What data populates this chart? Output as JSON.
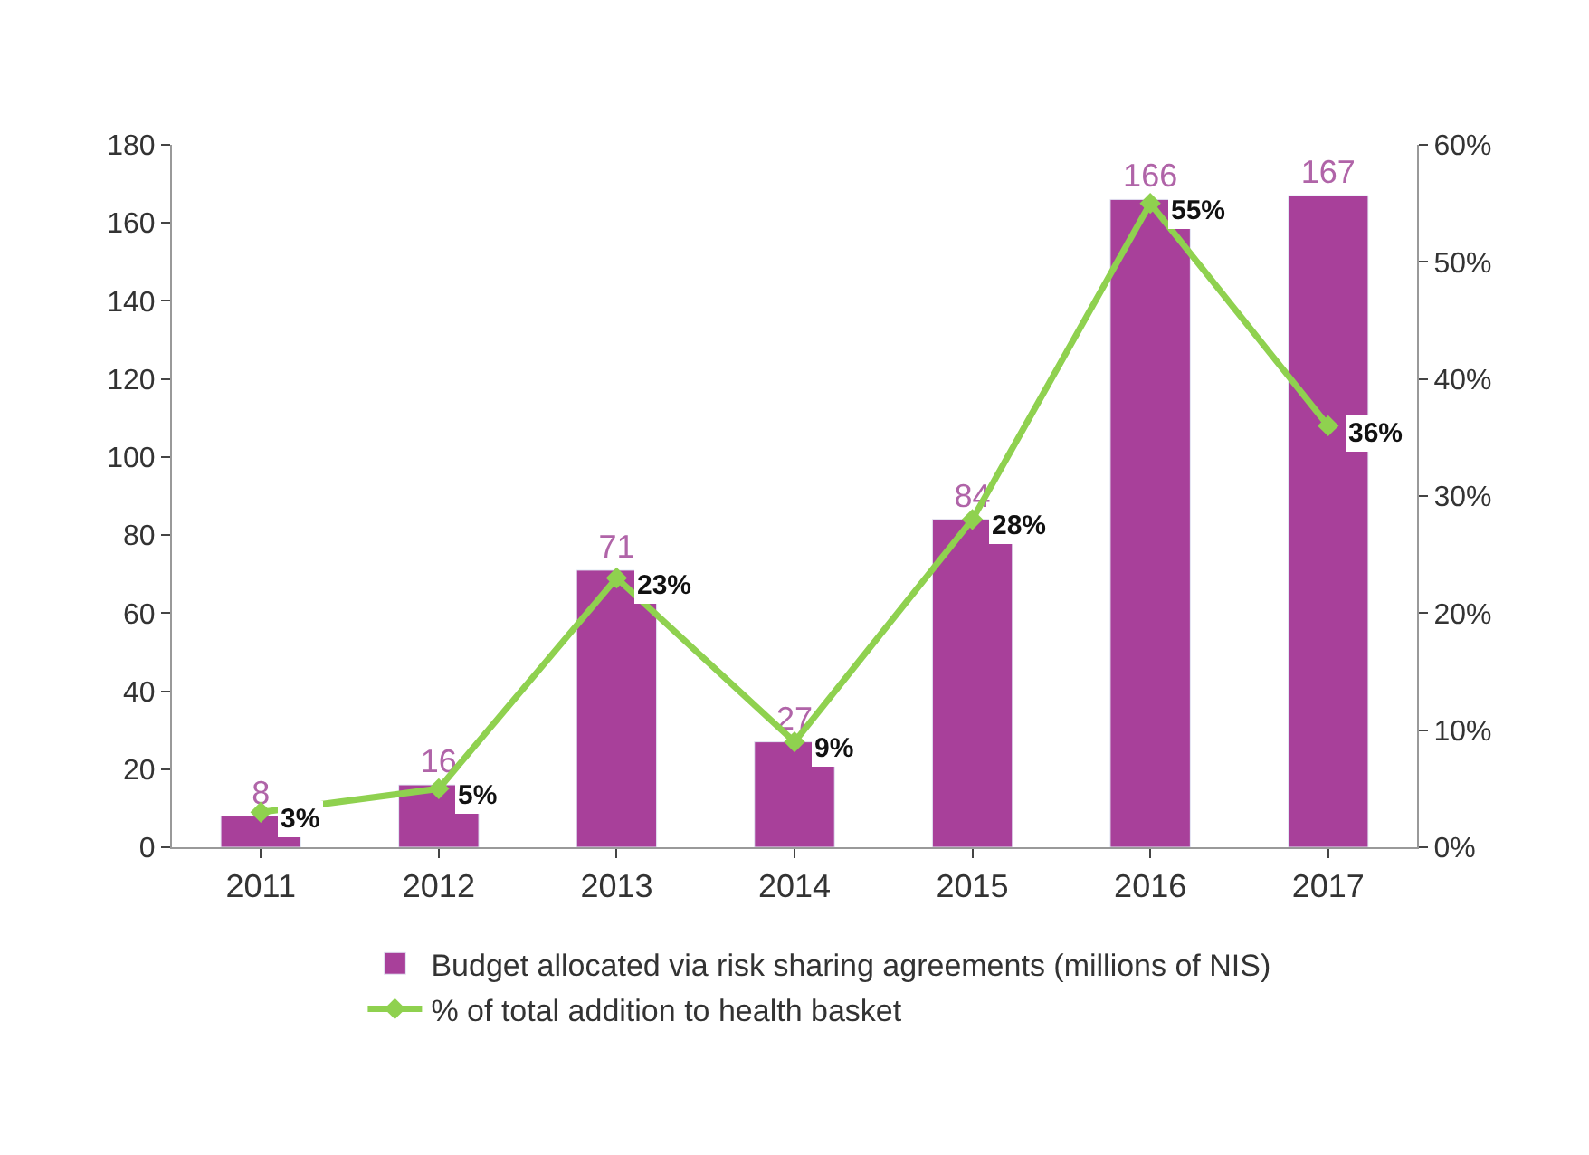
{
  "chart_data": {
    "type": "bar",
    "categories": [
      "2011",
      "2012",
      "2013",
      "2014",
      "2015",
      "2016",
      "2017"
    ],
    "series": [
      {
        "name": "Budget allocated via risk sharing agreements (millions of NIS)",
        "color": "#a8409a",
        "values": [
          8,
          16,
          71,
          27,
          84,
          166,
          167
        ],
        "value_labels": [
          "8",
          "16",
          "71",
          "27",
          "84",
          "166",
          "167"
        ]
      },
      {
        "name": "% of total addition to health basket",
        "type": "line",
        "axis": "y2",
        "color": "#8fd14f",
        "marker": "diamond",
        "line_style": "solid",
        "values": [
          3,
          5,
          23,
          9,
          28,
          55,
          36
        ],
        "value_labels": [
          "3%",
          "5%",
          "23%",
          "9%",
          "28%",
          "55%",
          "36%"
        ]
      }
    ],
    "ylim": [
      0,
      180
    ],
    "yticks": [
      0,
      20,
      40,
      60,
      80,
      100,
      120,
      140,
      160,
      180
    ],
    "y2lim": [
      0,
      60
    ],
    "y2ticks": [
      {
        "value": 0,
        "label": "0%"
      },
      {
        "value": 10,
        "label": "10%"
      },
      {
        "value": 20,
        "label": "20%"
      },
      {
        "value": 30,
        "label": "30%"
      },
      {
        "value": 40,
        "label": "40%"
      },
      {
        "value": 50,
        "label": "50%"
      },
      {
        "value": 60,
        "label": "60%"
      }
    ],
    "legend": "bottom"
  }
}
